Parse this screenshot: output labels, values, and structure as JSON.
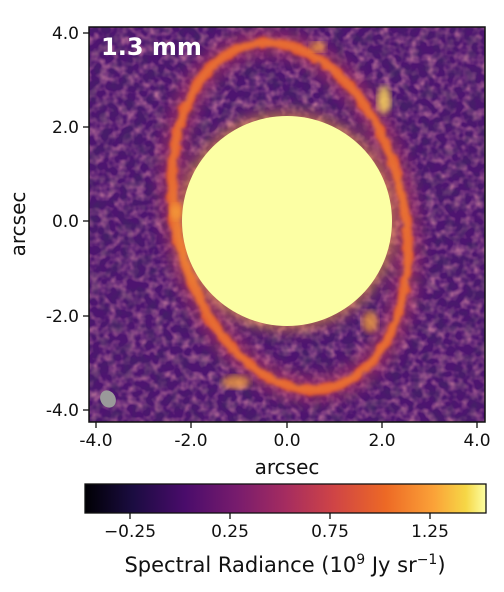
{
  "image": {
    "band_label": "1.3 mm",
    "xlabel": "arcsec",
    "ylabel": "arcsec",
    "x_ticks": [
      "-4.0",
      "-2.0",
      "0.0",
      "2.0",
      "4.0"
    ],
    "y_ticks": [
      "4.0",
      "2.0",
      "0.0",
      "-2.0",
      "-4.0"
    ],
    "x_range": [
      -4.2,
      4.2
    ],
    "y_range": [
      -4.2,
      4.2
    ],
    "colormap": "inferno",
    "masked_center_color": "#FCFFA4",
    "beam_color": "#9a9a9a"
  },
  "colorbar": {
    "ticks": [
      "−0.25",
      "0.25",
      "0.75",
      "1.25"
    ],
    "range": [
      -0.45,
      1.55
    ],
    "label_prefix": "Spectral Radiance (10",
    "label_exp1": "9",
    "label_mid": " Jy sr",
    "label_exp2": "−1",
    "label_suffix": ")"
  }
}
